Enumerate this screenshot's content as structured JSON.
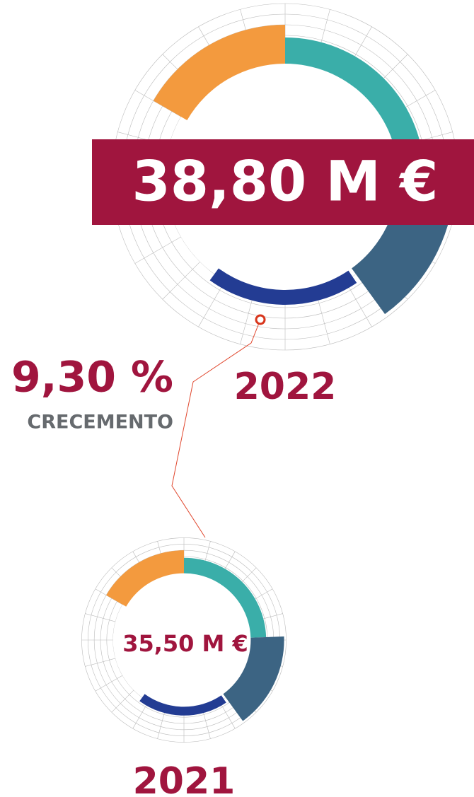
{
  "current": {
    "amount": "38,80 M €",
    "year": "2022"
  },
  "growth": {
    "rate": "9,30 %",
    "label": "CRECEMENTO"
  },
  "previous": {
    "amount": "35,50 M €",
    "year": "2021"
  }
}
